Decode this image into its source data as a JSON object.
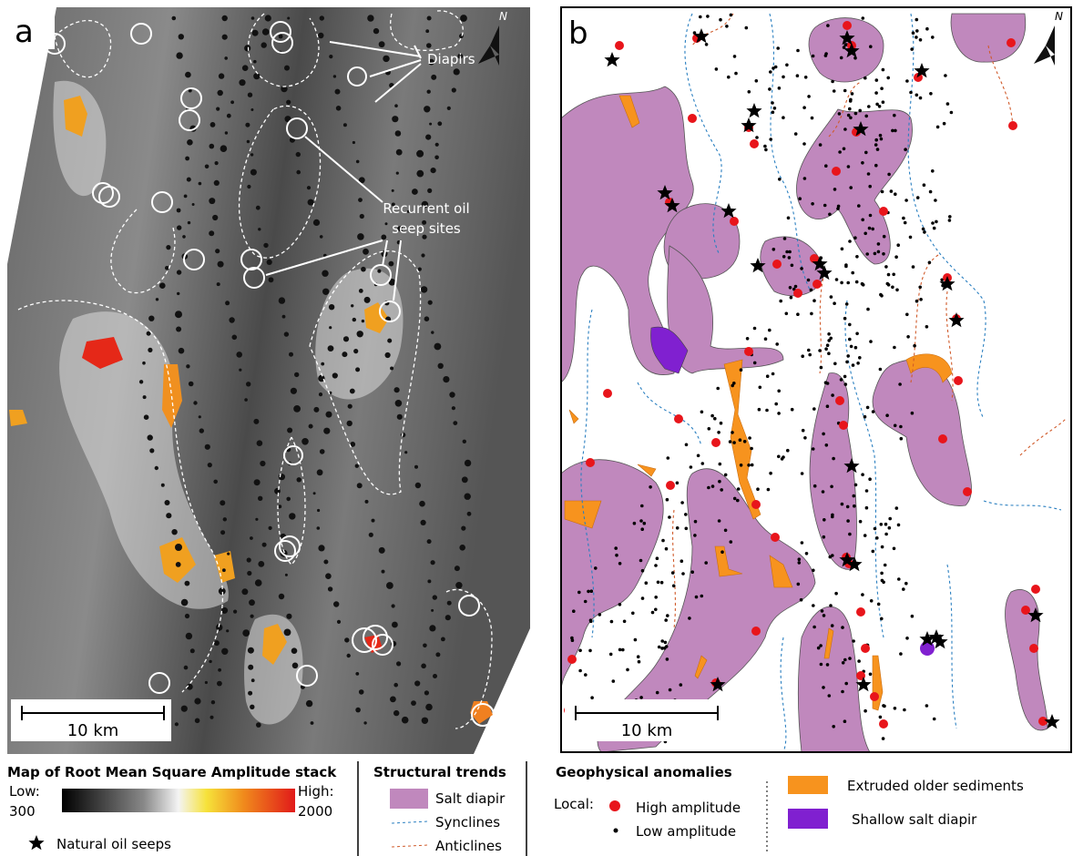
{
  "panel_a": {
    "label": "a",
    "north": "N",
    "diapirs": "Diapirs",
    "seep_sites": [
      "Recurrent oil",
      "seep sites"
    ],
    "scale_bar": "10 km"
  },
  "panel_b": {
    "label": "b",
    "north": "N",
    "scale_bar": "10 km"
  },
  "legend": {
    "amplitude": {
      "title": "Map of Root Mean Square Amplitude stack",
      "low_label": "Low:",
      "low": 300,
      "high_label": "High:",
      "high": 2000
    },
    "oil_seeps": "Natural oil seeps",
    "structural": {
      "title": "Structural trends",
      "items": [
        "Salt diapir",
        "Synclines",
        "Anticlines"
      ]
    },
    "geophysical": {
      "title": "Geophysical anomalies",
      "local": "Local:",
      "items": [
        "High amplitude",
        "Low amplitude",
        "Extruded older sediments",
        "Shallow salt diapir"
      ]
    }
  }
}
